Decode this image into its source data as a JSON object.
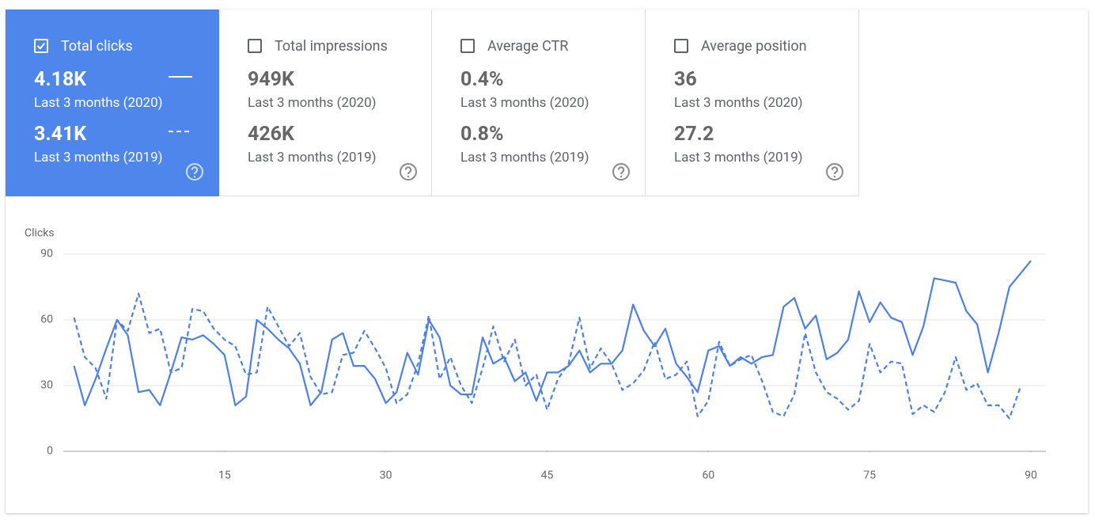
{
  "cards": [
    {
      "title": "Total clicks",
      "selected": true,
      "value_current": "4.18K",
      "label_current": "Last 3 months (2020)",
      "value_previous": "3.41K",
      "label_previous": "Last 3 months (2019)"
    },
    {
      "title": "Total impressions",
      "selected": false,
      "value_current": "949K",
      "label_current": "Last 3 months (2020)",
      "value_previous": "426K",
      "label_previous": "Last 3 months (2019)"
    },
    {
      "title": "Average CTR",
      "selected": false,
      "value_current": "0.4%",
      "label_current": "Last 3 months (2020)",
      "value_previous": "0.8%",
      "label_previous": "Last 3 months (2019)"
    },
    {
      "title": "Average position",
      "selected": false,
      "value_current": "36",
      "label_current": "Last 3 months (2020)",
      "value_previous": "27.2",
      "label_previous": "Last 3 months (2019)"
    }
  ],
  "chart_data": {
    "type": "line",
    "y_label": "Clicks",
    "x": [
      1,
      2,
      3,
      4,
      5,
      6,
      7,
      8,
      9,
      10,
      11,
      12,
      13,
      14,
      15,
      16,
      17,
      18,
      19,
      20,
      21,
      22,
      23,
      24,
      25,
      26,
      27,
      28,
      29,
      30,
      31,
      32,
      33,
      34,
      35,
      36,
      37,
      38,
      39,
      40,
      41,
      42,
      43,
      44,
      45,
      46,
      47,
      48,
      49,
      50,
      51,
      52,
      53,
      54,
      55,
      56,
      57,
      58,
      59,
      60,
      61,
      62,
      63,
      64,
      65,
      66,
      67,
      68,
      69,
      70,
      71,
      72,
      73,
      74,
      75,
      76,
      77,
      78,
      79,
      80,
      81,
      82,
      83,
      84,
      85,
      86,
      87,
      88,
      89,
      90
    ],
    "series": [
      {
        "color": "#4e80e4",
        "dashed": false,
        "values": [
          39,
          21,
          33,
          47,
          60,
          53,
          27,
          28,
          21,
          36,
          52,
          51,
          53,
          49,
          44,
          21,
          25,
          60,
          56,
          51,
          47,
          40,
          21,
          27,
          51,
          54,
          39,
          39,
          33,
          22,
          27,
          45,
          35,
          60,
          52,
          30,
          26,
          26,
          52,
          40,
          43,
          32,
          36,
          23,
          36,
          36,
          39,
          46,
          36,
          40,
          40,
          46,
          67,
          55,
          48,
          56,
          40,
          34,
          27,
          46,
          48,
          39,
          43,
          40,
          43,
          44,
          66,
          70,
          56,
          62,
          42,
          45,
          51,
          73,
          59,
          68,
          61,
          59,
          44,
          57,
          79,
          78,
          77,
          64,
          58,
          36,
          54,
          75,
          81,
          87
        ]
      },
      {
        "color": "#4e80e4",
        "dashed": true,
        "values": [
          61,
          43,
          38,
          24,
          60,
          55,
          72,
          54,
          56,
          36,
          38,
          65,
          64,
          56,
          51,
          48,
          35,
          36,
          66,
          57,
          48,
          54,
          34,
          26,
          27,
          44,
          45,
          55,
          47,
          38,
          22,
          26,
          40,
          62,
          33,
          43,
          30,
          22,
          38,
          57,
          41,
          51,
          30,
          35,
          19,
          33,
          40,
          61,
          38,
          47,
          40,
          28,
          31,
          37,
          50,
          33,
          35,
          41,
          16,
          23,
          50,
          39,
          42,
          44,
          32,
          18,
          16,
          26,
          54,
          36,
          27,
          24,
          19,
          23,
          49,
          36,
          41,
          40,
          17,
          21,
          18,
          27,
          43,
          28,
          31,
          21,
          21,
          15,
          29,
          null
        ]
      }
    ],
    "xlim": [
      0,
      91.4
    ],
    "ylim": [
      0,
      90
    ],
    "xticks": [
      15,
      30,
      45,
      60,
      75,
      90
    ],
    "yticks": [
      0,
      30,
      60,
      90
    ],
    "grid": true
  }
}
